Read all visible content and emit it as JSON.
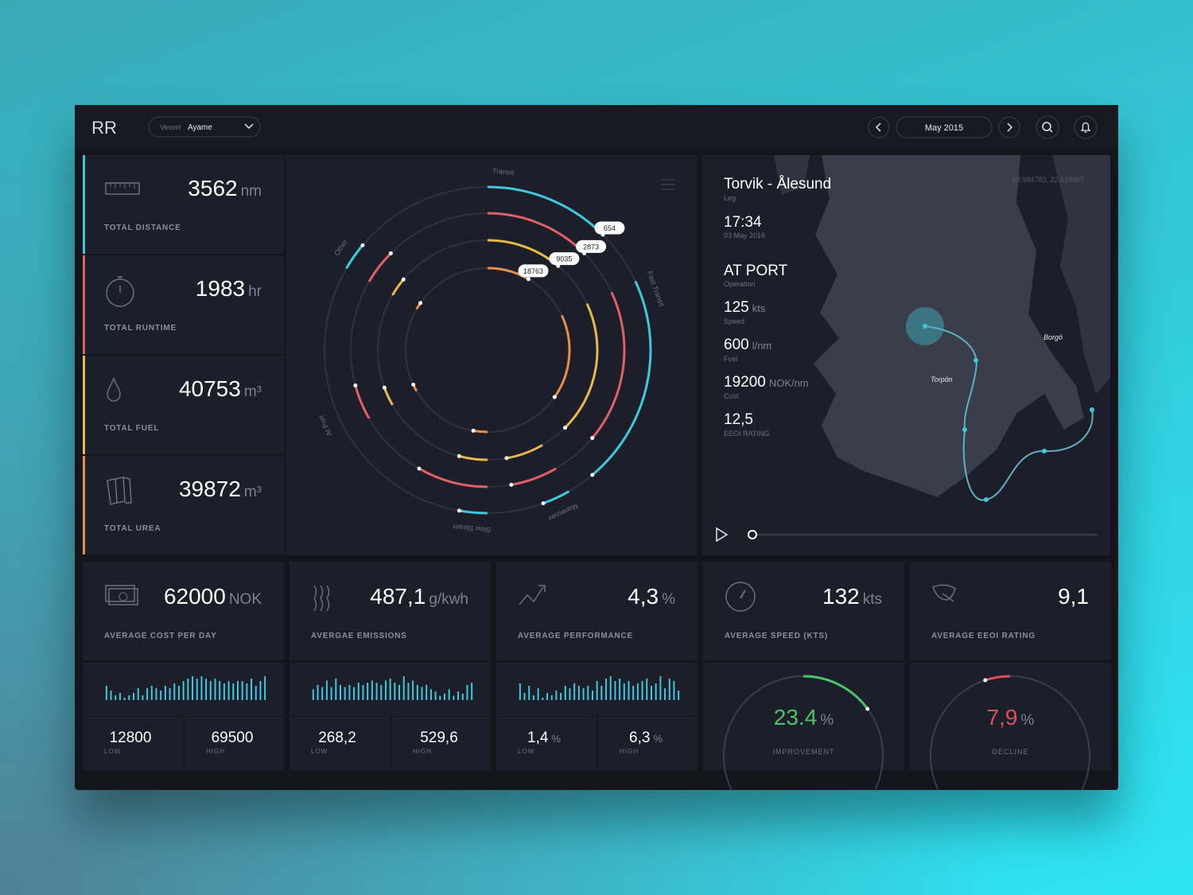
{
  "header": {
    "logo": "RR",
    "vessel_label": "Vessel",
    "vessel": "Ayame",
    "date": "May 2015"
  },
  "totals": [
    {
      "value": 3562,
      "unit": "nm",
      "label": "TOTAL DISTANCE",
      "color": "#3fc8dc"
    },
    {
      "value": 1983,
      "unit": "hr",
      "label": "TOTAL RUNTIME",
      "color": "#e0606a"
    },
    {
      "value": 40753,
      "unit": "m³",
      "label": "TOTAL FUEL",
      "color": "#e8b84a"
    },
    {
      "value": 39872,
      "unit": "m³",
      "label": "TOTAL UREA",
      "color": "#e8904a"
    }
  ],
  "ring_chart": {
    "type": "radial",
    "categories": [
      "Transit",
      "Fast Transit",
      "Maneuver",
      "Slow Steam",
      "At Port",
      "Other"
    ],
    "series": [
      {
        "color": "#3fc8dc",
        "total": 654,
        "values": [
          45,
          75,
          10,
          10,
          0,
          10
        ]
      },
      {
        "color": "#e0606a",
        "total": 2873,
        "values": [
          45,
          65,
          20,
          30,
          15,
          15
        ]
      },
      {
        "color": "#e8b84a",
        "total": 9035,
        "values": [
          40,
          70,
          20,
          15,
          10,
          10
        ]
      },
      {
        "color": "#e8904a",
        "total": 18763,
        "values": [
          30,
          60,
          0,
          10,
          5,
          5
        ]
      }
    ]
  },
  "voyage": {
    "leg": "Torvik - Ålesund",
    "leg_label": "Leg",
    "coords": "59.984783, 22.638867",
    "time": "17:34",
    "date": "03 May 2016",
    "operation": "AT PORT",
    "operation_label": "Operation",
    "metrics": [
      {
        "value": 125,
        "unit": "kts",
        "label": "Speed"
      },
      {
        "value": 600,
        "unit": "l/nm",
        "label": "Fuel"
      },
      {
        "value": 19200,
        "unit": "NOK/nm",
        "label": "Cost"
      },
      {
        "value": "12,5",
        "label": "EEOI RATING"
      }
    ],
    "places": [
      "Borgö",
      "Torpön"
    ]
  },
  "range_labels": {
    "low": "LOW",
    "high": "HIGH"
  },
  "kpis": [
    {
      "value": 62000,
      "unit": "NOK",
      "label": "AVERAGE COST PER DAY",
      "color": "#3fc8dc",
      "spark": [
        6,
        4,
        2,
        3,
        1,
        2,
        3,
        5,
        2,
        5,
        6,
        5,
        4,
        6,
        5,
        7,
        6,
        8,
        9,
        10,
        9,
        10,
        9,
        8,
        9,
        8,
        7,
        8,
        7,
        8,
        8,
        7,
        9,
        6,
        8,
        10
      ],
      "low": 12800,
      "high": 69500
    },
    {
      "value": "487,1",
      "unit": "g/kwh",
      "label": "AVERGAE EMISSIONS",
      "color": "#3fc8dc",
      "spark": [
        5,
        7,
        6,
        9,
        6,
        10,
        7,
        6,
        7,
        6,
        8,
        7,
        8,
        9,
        8,
        7,
        9,
        10,
        8,
        7,
        11,
        8,
        9,
        7,
        6,
        7,
        5,
        4,
        2,
        3,
        5,
        2,
        4,
        3,
        7,
        8
      ],
      "low": "268,2",
      "high": "529,6"
    },
    {
      "value": "4,3",
      "unit": "%",
      "label": "AVERAGE PERFORMANCE",
      "color": "#3fc8dc",
      "spark": [
        7,
        3,
        6,
        2,
        5,
        1,
        3,
        2,
        4,
        3,
        6,
        5,
        7,
        6,
        5,
        6,
        4,
        8,
        6,
        9,
        10,
        8,
        9,
        7,
        8,
        6,
        7,
        8,
        9,
        6,
        7,
        10,
        5,
        9,
        8,
        4
      ],
      "low": "1,4",
      "low_unit": "%",
      "high": "6,3",
      "high_unit": "%"
    },
    {
      "value": 132,
      "unit": "kts",
      "label": "AVERAGE SPEED (KTS)",
      "gauge": {
        "value": 23.4,
        "unit": "%",
        "label": "IMPROVEMENT",
        "color": "#4cc46a"
      }
    },
    {
      "value": "9,1",
      "label": "AVERAGE EEOI RATING",
      "gauge": {
        "value": 7.9,
        "value_label": "7,9",
        "unit": "%",
        "label": "DECLINE",
        "color": "#e0505a"
      }
    }
  ]
}
